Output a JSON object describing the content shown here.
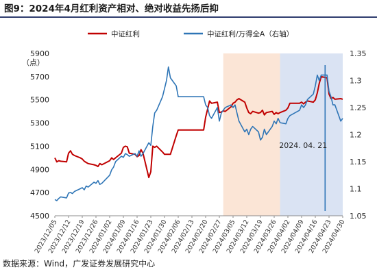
{
  "figure": {
    "title": "图9：2024年4月红利资产相对、绝对收益先扬后抑",
    "source": "数据来源：Wind，广发证券发展研究中心"
  },
  "chart_data": {
    "type": "line",
    "y_left": {
      "unit_label": "（点）",
      "range": [
        4500,
        5900
      ],
      "ticks": [
        4500,
        4700,
        4900,
        5100,
        5300,
        5500,
        5700,
        5900
      ]
    },
    "y_right": {
      "range": [
        1.05,
        1.35
      ],
      "ticks": [
        "1.05",
        "1.1",
        "1.15",
        "1.2",
        "1.25",
        "1.3",
        "1.35"
      ]
    },
    "x_range": [
      "2023-12-05",
      "2024-04-30"
    ],
    "x_ticks": [
      "2023/12/05",
      "2023/12/12",
      "2023/12/19",
      "2023/12/26",
      "2024/01/02",
      "2024/01/09",
      "2024/01/16",
      "2024/01/23",
      "2024/01/30",
      "2024/02/06",
      "2024/02/13",
      "2024/02/20",
      "2024/02/27",
      "2024/03/05",
      "2024/03/12",
      "2024/03/19",
      "2024/03/26",
      "2024/04/02",
      "2024/04/09",
      "2024/04/16",
      "2024/04/23",
      "2024/04/30"
    ],
    "shaded_regions": [
      {
        "from": "2024-02-29",
        "to": "2024-03-29",
        "color": "#fbe5d6"
      },
      {
        "from": "2024-03-29",
        "to": "2024-04-30",
        "color": "#dae3f3"
      }
    ],
    "annotation": {
      "x": "2024-04-21",
      "text": "2024. 04. 21",
      "color": "#2e75b6"
    },
    "series": [
      {
        "name": "中证红利",
        "axis": "left",
        "color": "#c00000",
        "points": [
          [
            "2023-12-05",
            5000
          ],
          [
            "2023-12-06",
            4965
          ],
          [
            "2023-12-07",
            4975
          ],
          [
            "2023-12-08",
            4970
          ],
          [
            "2023-12-11",
            4965
          ],
          [
            "2023-12-12",
            5040
          ],
          [
            "2023-12-13",
            5060
          ],
          [
            "2023-12-14",
            5030
          ],
          [
            "2023-12-15",
            5020
          ],
          [
            "2023-12-18",
            5000
          ],
          [
            "2023-12-19",
            4990
          ],
          [
            "2023-12-20",
            4970
          ],
          [
            "2023-12-21",
            4960
          ],
          [
            "2023-12-22",
            4950
          ],
          [
            "2023-12-25",
            4940
          ],
          [
            "2023-12-26",
            4935
          ],
          [
            "2023-12-27",
            4925
          ],
          [
            "2023-12-28",
            4950
          ],
          [
            "2023-12-29",
            4940
          ],
          [
            "2024-01-02",
            4975
          ],
          [
            "2024-01-03",
            5000
          ],
          [
            "2024-01-04",
            4985
          ],
          [
            "2024-01-05",
            5000
          ],
          [
            "2024-01-08",
            5040
          ],
          [
            "2024-01-09",
            5090
          ],
          [
            "2024-01-10",
            5100
          ],
          [
            "2024-01-11",
            5095
          ],
          [
            "2024-01-12",
            5040
          ],
          [
            "2024-01-15",
            5030
          ],
          [
            "2024-01-16",
            5010
          ],
          [
            "2024-01-17",
            5020
          ],
          [
            "2024-01-18",
            5070
          ],
          [
            "2024-01-19",
            5040
          ],
          [
            "2024-01-22",
            4830
          ],
          [
            "2024-01-23",
            4880
          ],
          [
            "2024-01-24",
            5100
          ],
          [
            "2024-01-25",
            5090
          ],
          [
            "2024-01-26",
            5100
          ],
          [
            "2024-01-29",
            5050
          ],
          [
            "2024-01-30",
            5030
          ],
          [
            "2024-01-31",
            5030
          ],
          [
            "2024-02-01",
            5030
          ],
          [
            "2024-02-02",
            5030
          ],
          [
            "2024-02-05",
            5190
          ],
          [
            "2024-02-06",
            5240
          ],
          [
            "2024-02-07",
            5240
          ],
          [
            "2024-02-08",
            5240
          ],
          [
            "2024-02-19",
            5240
          ],
          [
            "2024-02-20",
            5350
          ],
          [
            "2024-02-21",
            5420
          ],
          [
            "2024-02-22",
            5490
          ],
          [
            "2024-02-23",
            5470
          ],
          [
            "2024-02-26",
            5480
          ],
          [
            "2024-02-27",
            5390
          ],
          [
            "2024-02-28",
            5395
          ],
          [
            "2024-02-29",
            5405
          ],
          [
            "2024-03-01",
            5400
          ],
          [
            "2024-03-04",
            5440
          ],
          [
            "2024-03-05",
            5470
          ],
          [
            "2024-03-06",
            5480
          ],
          [
            "2024-03-07",
            5500
          ],
          [
            "2024-03-08",
            5510
          ],
          [
            "2024-03-11",
            5480
          ],
          [
            "2024-03-12",
            5430
          ],
          [
            "2024-03-13",
            5390
          ],
          [
            "2024-03-14",
            5380
          ],
          [
            "2024-03-15",
            5400
          ],
          [
            "2024-03-18",
            5385
          ],
          [
            "2024-03-19",
            5390
          ],
          [
            "2024-03-20",
            5410
          ],
          [
            "2024-03-21",
            5370
          ],
          [
            "2024-03-22",
            5390
          ],
          [
            "2024-03-25",
            5400
          ],
          [
            "2024-03-26",
            5375
          ],
          [
            "2024-03-27",
            5390
          ],
          [
            "2024-03-28",
            5380
          ],
          [
            "2024-03-29",
            5390
          ],
          [
            "2024-04-01",
            5410
          ],
          [
            "2024-04-02",
            5430
          ],
          [
            "2024-04-03",
            5470
          ],
          [
            "2024-04-08",
            5470
          ],
          [
            "2024-04-09",
            5480
          ],
          [
            "2024-04-10",
            5465
          ],
          [
            "2024-04-11",
            5480
          ],
          [
            "2024-04-12",
            5490
          ],
          [
            "2024-04-15",
            5480
          ],
          [
            "2024-04-16",
            5500
          ],
          [
            "2024-04-17",
            5560
          ],
          [
            "2024-04-18",
            5640
          ],
          [
            "2024-04-19",
            5700
          ],
          [
            "2024-04-22",
            5690
          ],
          [
            "2024-04-23",
            5550
          ],
          [
            "2024-04-24",
            5510
          ],
          [
            "2024-04-25",
            5520
          ],
          [
            "2024-04-26",
            5505
          ],
          [
            "2024-04-29",
            5510
          ],
          [
            "2024-04-30",
            5505
          ]
        ]
      },
      {
        "name": "中证红利/万得全A（右轴）",
        "axis": "right",
        "color": "#2e75b6",
        "points": [
          [
            "2023-12-05",
            1.08
          ],
          [
            "2023-12-06",
            1.078
          ],
          [
            "2023-12-07",
            1.082
          ],
          [
            "2023-12-08",
            1.085
          ],
          [
            "2023-12-11",
            1.083
          ],
          [
            "2023-12-12",
            1.092
          ],
          [
            "2023-12-13",
            1.093
          ],
          [
            "2023-12-14",
            1.091
          ],
          [
            "2023-12-15",
            1.095
          ],
          [
            "2023-12-18",
            1.1
          ],
          [
            "2023-12-19",
            1.102
          ],
          [
            "2023-12-20",
            1.098
          ],
          [
            "2023-12-21",
            1.105
          ],
          [
            "2023-12-22",
            1.103
          ],
          [
            "2023-12-25",
            1.112
          ],
          [
            "2023-12-26",
            1.11
          ],
          [
            "2023-12-27",
            1.115
          ],
          [
            "2023-12-28",
            1.108
          ],
          [
            "2023-12-29",
            1.11
          ],
          [
            "2024-01-02",
            1.125
          ],
          [
            "2024-01-03",
            1.135
          ],
          [
            "2024-01-04",
            1.14
          ],
          [
            "2024-01-05",
            1.15
          ],
          [
            "2024-01-08",
            1.16
          ],
          [
            "2024-01-09",
            1.158
          ],
          [
            "2024-01-10",
            1.165
          ],
          [
            "2024-01-11",
            1.163
          ],
          [
            "2024-01-12",
            1.16
          ],
          [
            "2024-01-15",
            1.165
          ],
          [
            "2024-01-16",
            1.16
          ],
          [
            "2024-01-17",
            1.17
          ],
          [
            "2024-01-18",
            1.16
          ],
          [
            "2024-01-19",
            1.165
          ],
          [
            "2024-01-22",
            1.185
          ],
          [
            "2024-01-23",
            1.18
          ],
          [
            "2024-01-24",
            1.215
          ],
          [
            "2024-01-25",
            1.24
          ],
          [
            "2024-01-26",
            1.245
          ],
          [
            "2024-01-29",
            1.27
          ],
          [
            "2024-01-30",
            1.285
          ],
          [
            "2024-01-31",
            1.3
          ],
          [
            "2024-02-01",
            1.325
          ],
          [
            "2024-02-02",
            1.305
          ],
          [
            "2024-02-05",
            1.29
          ],
          [
            "2024-02-06",
            1.27
          ],
          [
            "2024-02-07",
            1.27
          ],
          [
            "2024-02-08",
            1.27
          ],
          [
            "2024-02-19",
            1.27
          ],
          [
            "2024-02-20",
            1.255
          ],
          [
            "2024-02-21",
            1.25
          ],
          [
            "2024-02-22",
            1.235
          ],
          [
            "2024-02-23",
            1.23
          ],
          [
            "2024-02-26",
            1.25
          ],
          [
            "2024-02-27",
            1.225
          ],
          [
            "2024-02-28",
            1.24
          ],
          [
            "2024-02-29",
            1.245
          ],
          [
            "2024-03-01",
            1.25
          ],
          [
            "2024-03-04",
            1.255
          ],
          [
            "2024-03-05",
            1.25
          ],
          [
            "2024-03-06",
            1.255
          ],
          [
            "2024-03-07",
            1.24
          ],
          [
            "2024-03-08",
            1.225
          ],
          [
            "2024-03-11",
            1.205
          ],
          [
            "2024-03-12",
            1.21
          ],
          [
            "2024-03-13",
            1.2
          ],
          [
            "2024-03-14",
            1.21
          ],
          [
            "2024-03-15",
            1.215
          ],
          [
            "2024-03-18",
            1.205
          ],
          [
            "2024-03-19",
            1.19
          ],
          [
            "2024-03-20",
            1.195
          ],
          [
            "2024-03-21",
            1.21
          ],
          [
            "2024-03-22",
            1.2
          ],
          [
            "2024-03-25",
            1.215
          ],
          [
            "2024-03-26",
            1.225
          ],
          [
            "2024-03-27",
            1.22
          ],
          [
            "2024-03-28",
            1.23
          ],
          [
            "2024-03-29",
            1.222
          ],
          [
            "2024-04-01",
            1.22
          ],
          [
            "2024-04-02",
            1.23
          ],
          [
            "2024-04-03",
            1.235
          ],
          [
            "2024-04-08",
            1.245
          ],
          [
            "2024-04-09",
            1.255
          ],
          [
            "2024-04-10",
            1.25
          ],
          [
            "2024-04-11",
            1.255
          ],
          [
            "2024-04-12",
            1.265
          ],
          [
            "2024-04-15",
            1.275
          ],
          [
            "2024-04-16",
            1.29
          ],
          [
            "2024-04-17",
            1.31
          ],
          [
            "2024-04-18",
            1.3
          ],
          [
            "2024-04-19",
            1.31
          ],
          [
            "2024-04-22",
            1.31
          ],
          [
            "2024-04-23",
            1.28
          ],
          [
            "2024-04-24",
            1.27
          ],
          [
            "2024-04-25",
            1.255
          ],
          [
            "2024-04-26",
            1.255
          ],
          [
            "2024-04-29",
            1.225
          ],
          [
            "2024-04-30",
            1.23
          ]
        ]
      }
    ]
  }
}
